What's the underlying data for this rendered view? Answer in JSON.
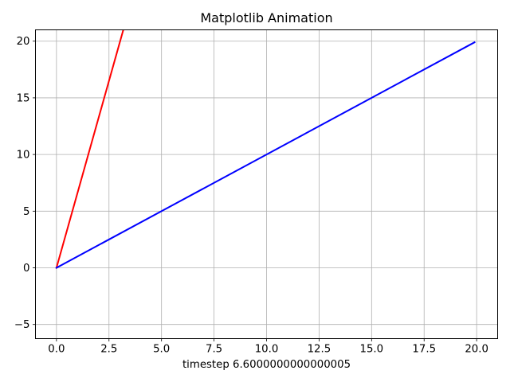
{
  "chart_data": {
    "type": "line",
    "title": "Matplotlib Animation",
    "xlabel": "timestep 6.6000000000000005",
    "ylabel": "",
    "xlim": [
      -1.0,
      21.0
    ],
    "ylim": [
      -6.25,
      21.0
    ],
    "xticks": [
      0.0,
      2.5,
      5.0,
      7.5,
      10.0,
      12.5,
      15.0,
      17.5,
      20.0
    ],
    "xtick_labels": [
      "0.0",
      "2.5",
      "5.0",
      "7.5",
      "10.0",
      "12.5",
      "15.0",
      "17.5",
      "20.0"
    ],
    "yticks": [
      -5,
      0,
      5,
      10,
      15,
      20
    ],
    "ytick_labels": [
      "−5",
      "0",
      "5",
      "10",
      "15",
      "20"
    ],
    "grid": true,
    "legend": null,
    "series": [
      {
        "color": "#ff0000",
        "x": [
          0.0,
          3.3
        ],
        "y": [
          0.0,
          21.78
        ]
      },
      {
        "color": "#0000ff",
        "x": [
          0.0,
          19.9
        ],
        "y": [
          0.0,
          19.9
        ]
      }
    ]
  }
}
